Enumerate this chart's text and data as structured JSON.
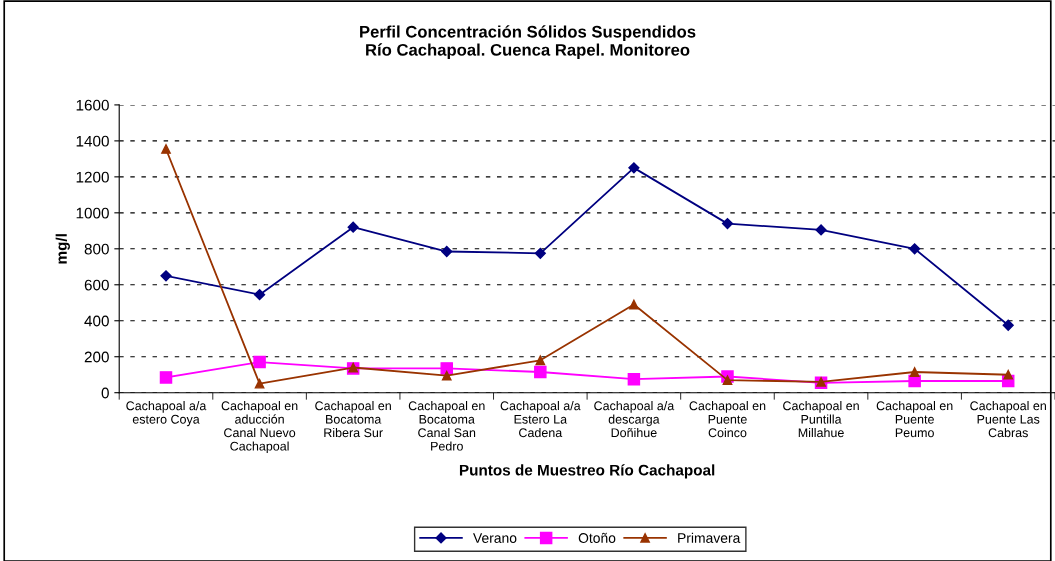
{
  "chart_data": {
    "type": "line",
    "title": "Perfil Concentración Sólidos Suspendidos\nRío Cachapoal. Cuenca Rapel. Monitoreo",
    "xlabel": "Puntos de Muestreo Río Cachapoal",
    "ylabel": "mg/l",
    "categories": [
      "Cachapoal a/a\nestero Coya",
      "Cachapoal en\naducción\nCanal Nuevo\nCachapoal",
      "Cachapoal en\nBocatoma\nRibera Sur",
      "Cachapoal en\nBocatoma\nCanal San\nPedro",
      "Cachapoal a/a\nEstero La\nCadena",
      "Cachapoal a/a\ndescarga\nDoñihue",
      "Cachapoal en\nPuente\nCoinco",
      "Cachapoal en\nPuntilla\nMillahue",
      "Cachapoal en\nPuente\nPeumo",
      "Cachapoal en\nPuente Las\nCabras"
    ],
    "series": [
      {
        "name": "Verano",
        "color": "#000080",
        "marker": "diamond",
        "values": [
          650,
          545,
          920,
          785,
          775,
          1250,
          940,
          905,
          800,
          375
        ]
      },
      {
        "name": "Otoño",
        "color": "#ff00ff",
        "marker": "square",
        "values": [
          85,
          170,
          135,
          135,
          115,
          75,
          90,
          55,
          65,
          65
        ]
      },
      {
        "name": "Primavera",
        "color": "#993300",
        "marker": "triangle",
        "values": [
          1355,
          50,
          140,
          95,
          180,
          490,
          70,
          60,
          115,
          100
        ]
      }
    ],
    "ylim": [
      0,
      1600
    ],
    "yticks": [
      0,
      200,
      400,
      600,
      800,
      1000,
      1200,
      1400,
      1600
    ],
    "grid": "y",
    "legend": "bottom",
    "line_style": "solid"
  }
}
